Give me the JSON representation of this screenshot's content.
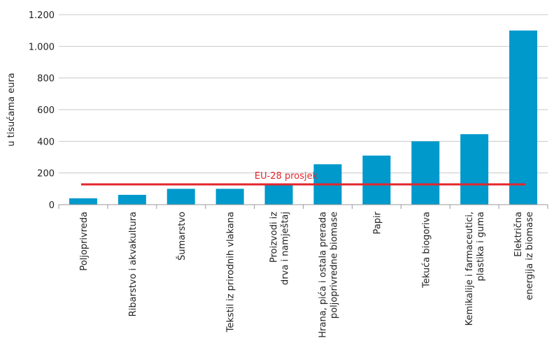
{
  "chart_data": {
    "type": "bar",
    "ylabel": "u tisućama eura",
    "ylim": [
      0,
      1200
    ],
    "yticks": [
      0,
      200,
      400,
      600,
      800,
      1000,
      1200
    ],
    "ytick_labels": [
      "0",
      "200",
      "400",
      "600",
      "800",
      "1.000",
      "1.200"
    ],
    "grid": true,
    "bar_color": "#0099cc",
    "categories": [
      [
        "Poljoprivreda"
      ],
      [
        "Ribarstvo i akvakultura"
      ],
      [
        "Šumarstvo"
      ],
      [
        "Tekstil iz prirodnih vlakana"
      ],
      [
        "Proizvodi iz",
        "drva i namještaj"
      ],
      [
        "Hrana, pića i ostala prerada",
        "poljoprivredne biomase"
      ],
      [
        "Papir"
      ],
      [
        "Tekuća biogoriva"
      ],
      [
        "Kemikalije i farmaceutici,",
        "plastika i guma"
      ],
      [
        "Električna",
        "energija iz biomase"
      ]
    ],
    "values": [
      40,
      62,
      100,
      100,
      130,
      255,
      310,
      400,
      445,
      1100
    ],
    "reference_line": {
      "label": "EU-28 prosjek",
      "value": 128,
      "color": "#e3262d"
    }
  }
}
